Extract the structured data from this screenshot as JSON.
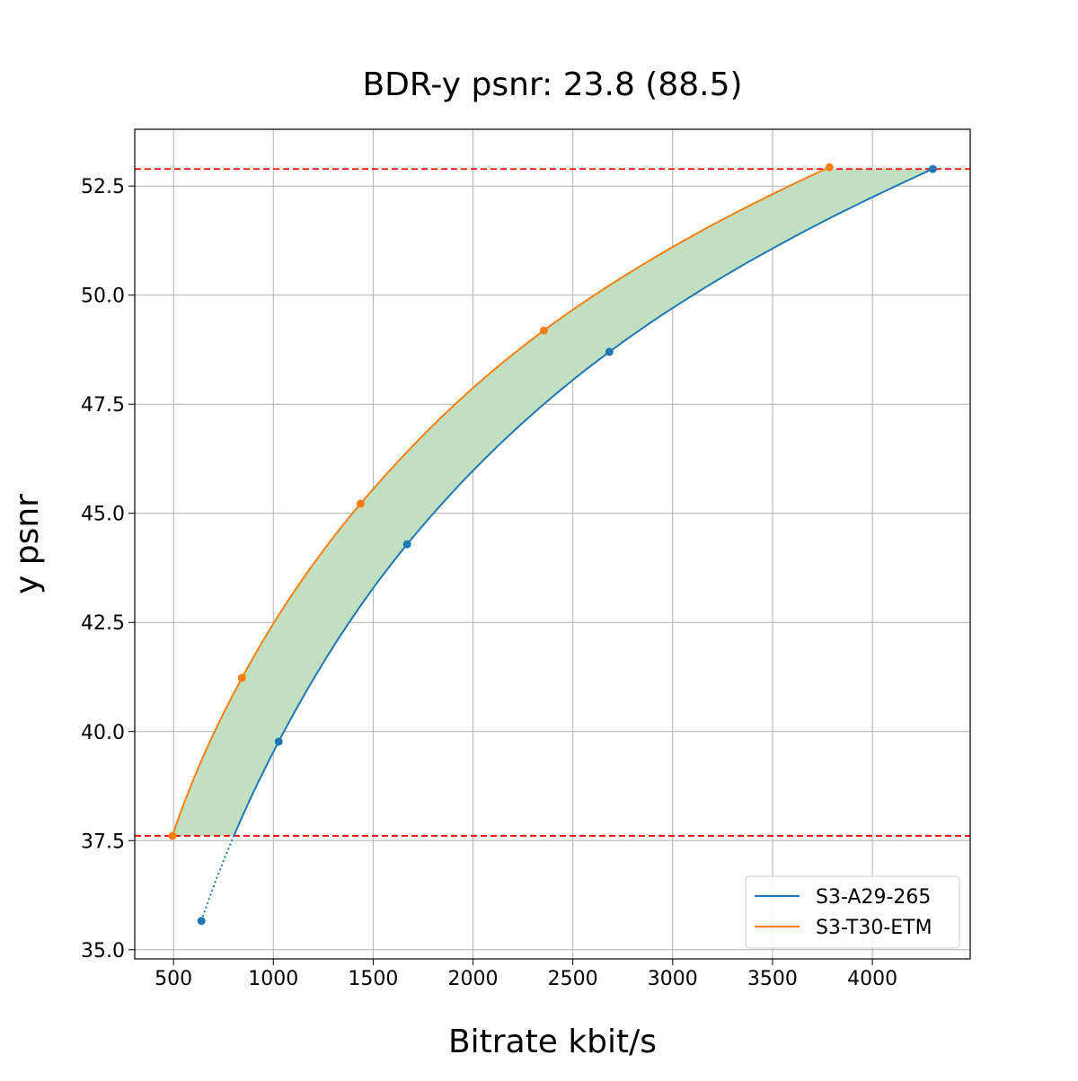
{
  "chart_data": {
    "type": "line",
    "title": "BDR-y psnr: 23.8 (88.5)",
    "xlabel": "Bitrate kbit/s",
    "ylabel": "y psnr",
    "xlim": [
      306,
      4490
    ],
    "ylim": [
      34.79,
      53.8
    ],
    "grid": true,
    "legend_placement": "lower right",
    "xticks": [
      500,
      1000,
      1500,
      2000,
      2500,
      3000,
      3500,
      4000
    ],
    "xtick_labels": [
      "500",
      "1000",
      "1500",
      "2000",
      "2500",
      "3000",
      "3500",
      "4000"
    ],
    "yticks": [
      35.0,
      37.5,
      40.0,
      42.5,
      45.0,
      47.5,
      50.0,
      52.5
    ],
    "ytick_labels": [
      "35.0",
      "37.5",
      "40.0",
      "42.5",
      "45.0",
      "47.5",
      "50.0",
      "52.5"
    ],
    "series": [
      {
        "name": "S3-A29-265",
        "color": "#1f77b4",
        "x": [
          640,
          1027,
          1670,
          2683,
          4303
        ],
        "y": [
          35.66,
          39.77,
          44.29,
          48.7,
          52.89
        ]
      },
      {
        "name": "S3-T30-ETM",
        "color": "#ff7f0e",
        "x": [
          495,
          843,
          1437,
          2355,
          3785
        ],
        "y": [
          37.61,
          41.23,
          45.22,
          49.19,
          52.93
        ]
      }
    ],
    "reference_lines": {
      "y": [
        37.61,
        52.89
      ],
      "color": "#ff0000",
      "style": "dashed"
    },
    "fill_between": {
      "color": "#c1e0c1",
      "y_range": [
        37.61,
        52.89
      ]
    }
  }
}
